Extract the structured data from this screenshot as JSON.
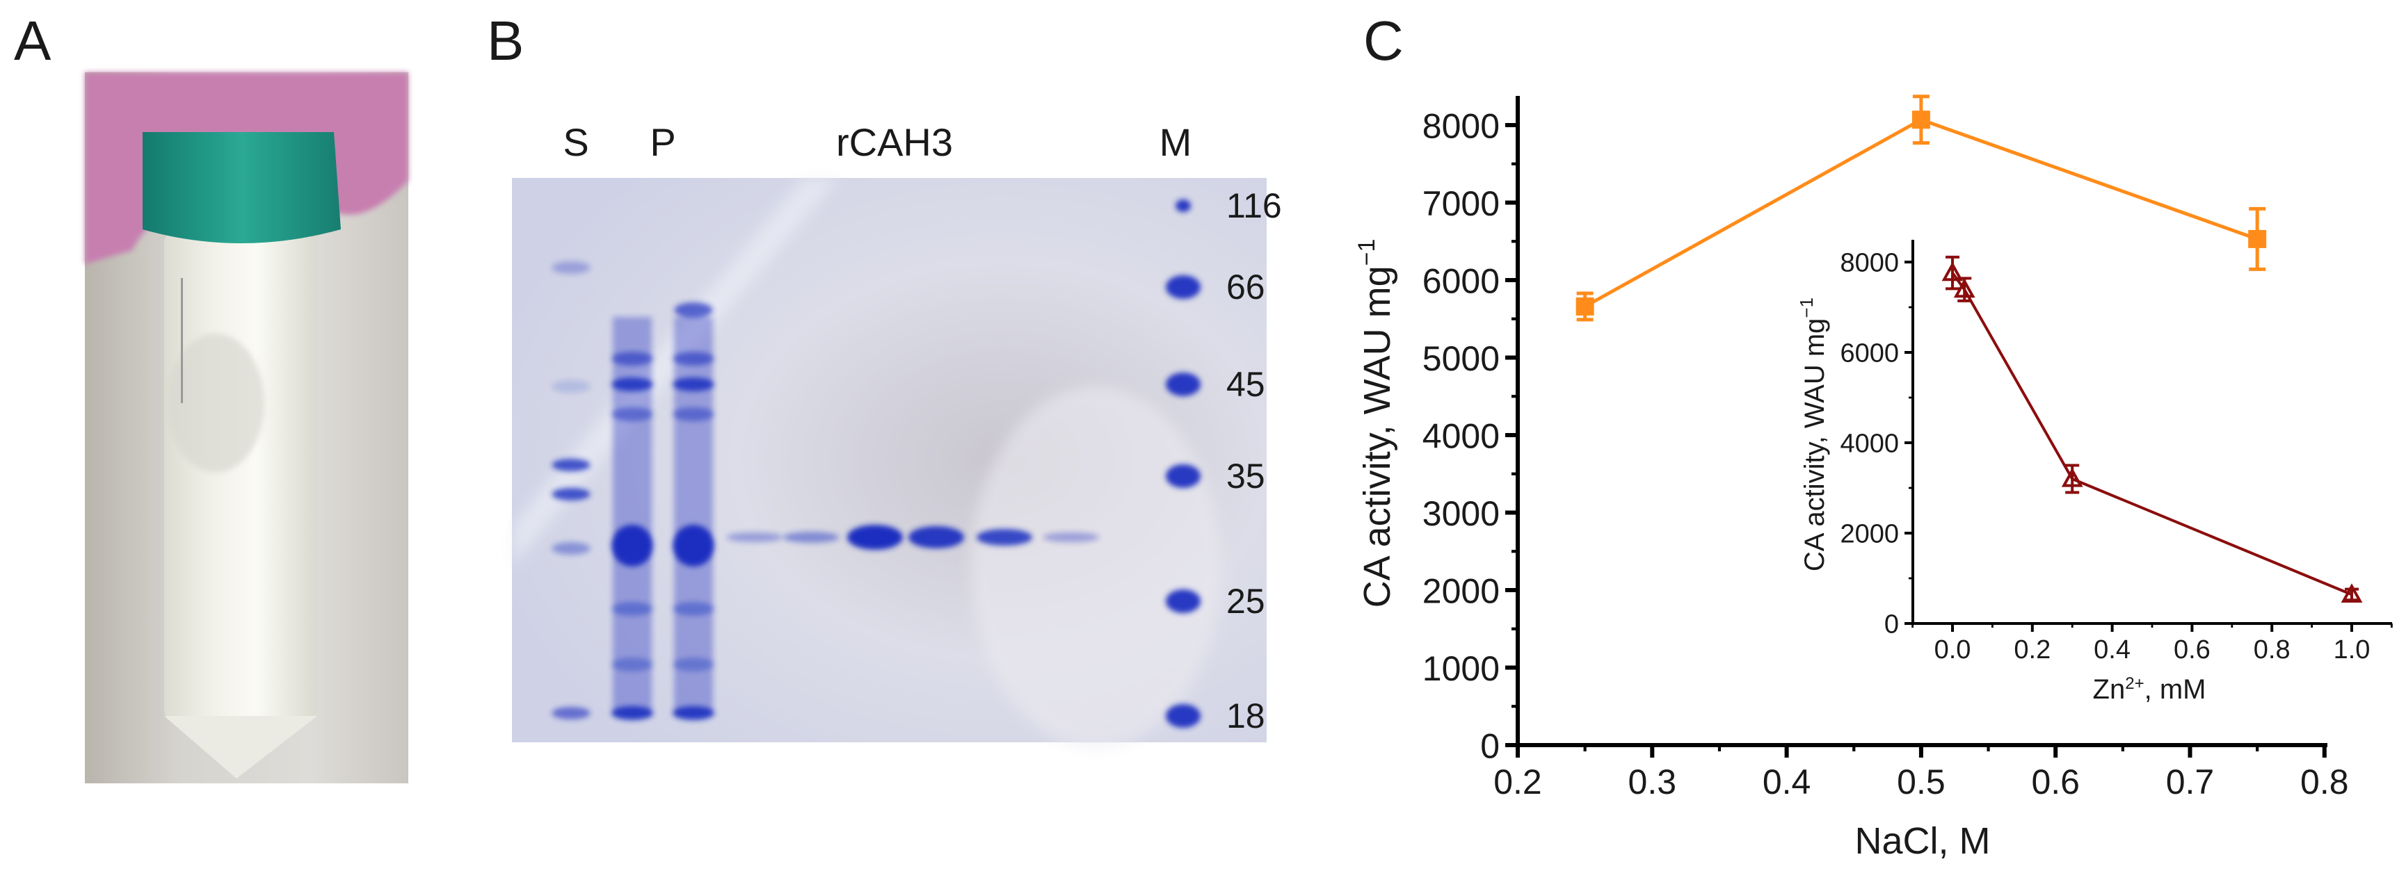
{
  "panels": {
    "a_label": "A",
    "b_label": "B",
    "c_label": "C"
  },
  "gel": {
    "lanes": {
      "s": "S",
      "p": "P",
      "rcah3": "rCAH3",
      "m": "M"
    },
    "markers": [
      "116",
      "66",
      "45",
      "35",
      "25",
      "18"
    ],
    "background_color": "#d4d6e6",
    "band_color": "#1a2fc0"
  },
  "chart_data": [
    {
      "type": "line",
      "title": "",
      "xlabel": "NaCl, M",
      "ylabel": "CA activity, WAU mg",
      "ylabel_sup": "−1",
      "xlim": [
        0.2,
        0.82
      ],
      "ylim": [
        0,
        8000
      ],
      "xticks": [
        "0.2",
        "0.3",
        "0.4",
        "0.5",
        "0.6",
        "0.7",
        "0.8"
      ],
      "yticks": [
        "0",
        "1000",
        "2000",
        "3000",
        "4000",
        "5000",
        "6000",
        "7000",
        "8000"
      ],
      "grid": false,
      "color": "#ff8c1a",
      "marker": "square",
      "series": [
        {
          "x": [
            0.25,
            0.5,
            0.75
          ],
          "y": [
            5660,
            8070,
            6530
          ],
          "error": [
            170,
            300,
            390
          ]
        }
      ]
    },
    {
      "type": "line",
      "title": "",
      "inset": true,
      "xlabel": "Zn",
      "xlabel_sup": "2+",
      "xlabel_suffix": ", mM",
      "ylabel": "CA activity, WAU mg",
      "ylabel_sup": "−1",
      "xlim": [
        -0.1,
        1.1
      ],
      "ylim": [
        0,
        8500
      ],
      "xticks": [
        "0.0",
        "0.2",
        "0.4",
        "0.6",
        "0.8",
        "1.0"
      ],
      "yticks": [
        "0",
        "2000",
        "4000",
        "6000",
        "8000"
      ],
      "grid": false,
      "color": "#8b0d0d",
      "marker": "triangle",
      "series": [
        {
          "x": [
            0.0,
            0.03,
            0.3,
            1.0
          ],
          "y": [
            7760,
            7390,
            3200,
            640
          ],
          "error": [
            350,
            250,
            300,
            120
          ]
        }
      ]
    }
  ]
}
